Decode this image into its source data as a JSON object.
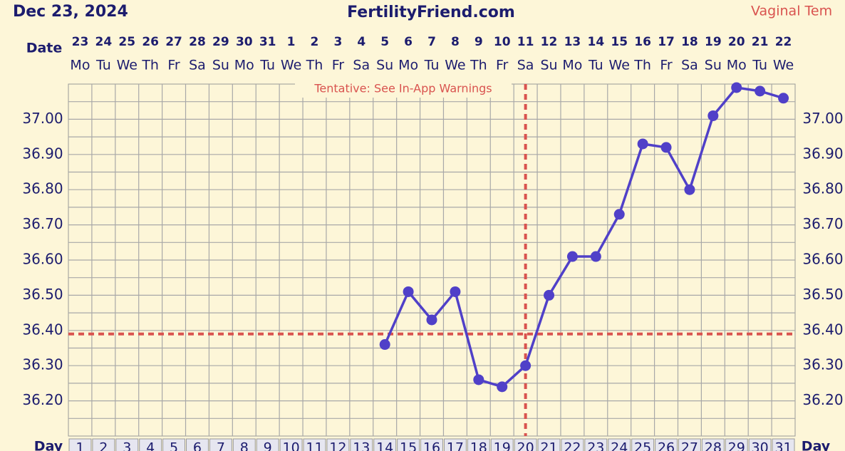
{
  "chart_data": {
    "type": "line",
    "title": "FertilityFriend.com",
    "date": "Dec 23, 2024",
    "temp_method": "Vaginal Tem",
    "date_label": "Date",
    "day_label": "Day",
    "annotation": "Tentative: See In-App Warnings",
    "categories": [
      "23",
      "24",
      "25",
      "26",
      "27",
      "28",
      "29",
      "30",
      "31",
      "1",
      "2",
      "3",
      "4",
      "5",
      "6",
      "7",
      "8",
      "9",
      "10",
      "11",
      "12",
      "13",
      "14",
      "15",
      "16",
      "17",
      "18",
      "19",
      "20",
      "21",
      "22"
    ],
    "weekdays": [
      "Mo",
      "Tu",
      "We",
      "Th",
      "Fr",
      "Sa",
      "Su",
      "Mo",
      "Tu",
      "We",
      "Th",
      "Fr",
      "Sa",
      "Su",
      "Mo",
      "Tu",
      "We",
      "Th",
      "Fr",
      "Sa",
      "Su",
      "Mo",
      "Tu",
      "We",
      "Th",
      "Fr",
      "Sa",
      "Su",
      "Mo",
      "Tu",
      "We"
    ],
    "cycle_days": [
      1,
      2,
      3,
      4,
      5,
      6,
      7,
      8,
      9,
      10,
      11,
      12,
      13,
      14,
      15,
      16,
      17,
      18,
      19,
      20,
      21,
      22,
      23,
      24,
      25,
      26,
      27,
      28,
      29,
      30,
      31
    ],
    "series": [
      {
        "color": "#5040c8",
        "values": [
          null,
          null,
          null,
          null,
          null,
          null,
          null,
          null,
          null,
          null,
          null,
          null,
          null,
          36.36,
          36.51,
          36.43,
          36.51,
          36.26,
          36.24,
          36.3,
          36.5,
          36.61,
          36.61,
          36.73,
          36.93,
          36.92,
          36.8,
          37.01,
          37.09,
          37.08,
          37.06
        ]
      }
    ],
    "coverline": 36.39,
    "ovulation_day": 20,
    "ylim": [
      36.1,
      37.1
    ],
    "yticks": [
      {
        "value": 36.2,
        "label": "36.20"
      },
      {
        "value": 36.3,
        "label": "36.30"
      },
      {
        "value": 36.4,
        "label": "36.40"
      },
      {
        "value": 36.5,
        "label": "36.50"
      },
      {
        "value": 36.6,
        "label": "36.60"
      },
      {
        "value": 36.7,
        "label": "36.70"
      },
      {
        "value": 36.8,
        "label": "36.80"
      },
      {
        "value": 36.9,
        "label": "36.90"
      },
      {
        "value": 37,
        "label": "37.00"
      }
    ],
    "minor_yticks": [
      36.15,
      36.25,
      36.35,
      36.45,
      36.55,
      36.65,
      36.75,
      36.85,
      36.95,
      37.05
    ],
    "grid": true
  }
}
